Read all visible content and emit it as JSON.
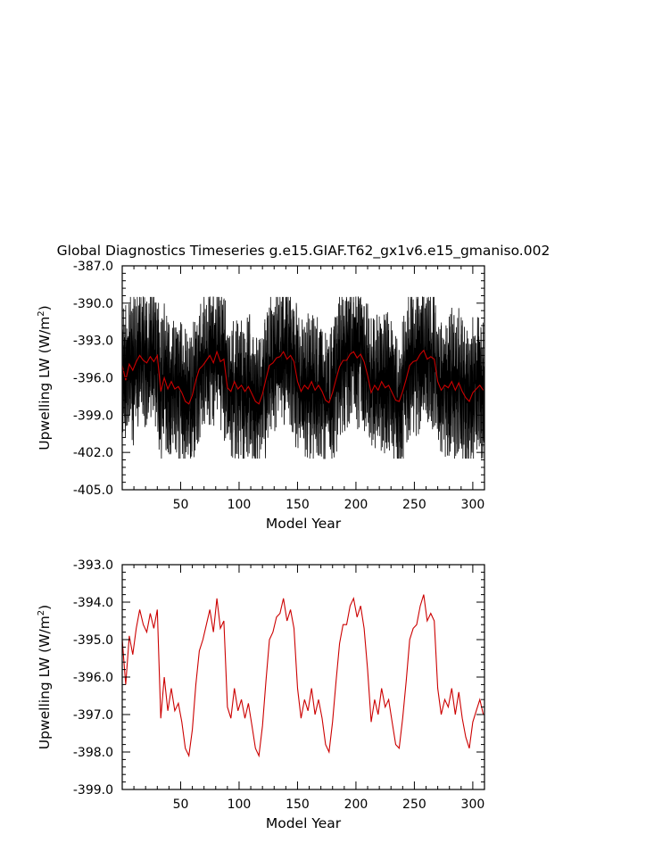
{
  "title": "Global Diagnostics Timeseries g.e15.GIAF.T62_gx1v6.e15_gmaniso.002",
  "chart_data": [
    {
      "type": "line",
      "xlabel": "Model Year",
      "ylabel": "Upwelling LW (W/m2)",
      "ylabel_main": "Upwelling LW (W/m",
      "ylabel_sup": "2",
      "ylabel_close": ")",
      "xlim": [
        0,
        310
      ],
      "ylim": [
        -405.0,
        -387.0
      ],
      "xticks": [
        "50",
        "100",
        "150",
        "200",
        "250",
        "300"
      ],
      "xtick_values": [
        50,
        100,
        150,
        200,
        250,
        300
      ],
      "yticks": [
        "-405.0",
        "-402.0",
        "-399.0",
        "-396.0",
        "-393.0",
        "-390.0",
        "-387.0"
      ],
      "ytick_values": [
        -405,
        -402,
        -399,
        -396,
        -393,
        -390,
        -387
      ],
      "series": [
        {
          "color": "#000000",
          "style": "dense monthly series",
          "envelope_low": -402.5,
          "envelope_high": -389.5,
          "typical_low": -401.5,
          "typical_high": -390.5
        },
        {
          "color": "#cc0000",
          "style": "annual mean, same as lower panel",
          "x": [
            0,
            3,
            6,
            9,
            12,
            15,
            18,
            21,
            24,
            27,
            30,
            33,
            36,
            39,
            42,
            45,
            48,
            51,
            54,
            57,
            60,
            63,
            66,
            69,
            72,
            75,
            78,
            81,
            84,
            87,
            90,
            93,
            96,
            99,
            102,
            105,
            108,
            111,
            114,
            117,
            120,
            123,
            126,
            129,
            132,
            135,
            138,
            141,
            144,
            147,
            150,
            153,
            156,
            159,
            162,
            165,
            168,
            171,
            174,
            177,
            180,
            183,
            186,
            189,
            192,
            195,
            198,
            201,
            204,
            207,
            210,
            213,
            216,
            219,
            222,
            225,
            228,
            231,
            234,
            237,
            240,
            243,
            246,
            249,
            252,
            255,
            258,
            261,
            264,
            267,
            270,
            273,
            276,
            279,
            282,
            285,
            288,
            291,
            294,
            297,
            300,
            303,
            306,
            309
          ],
          "y": [
            -395.0,
            -396.2,
            -394.9,
            -395.4,
            -394.7,
            -394.2,
            -394.6,
            -394.8,
            -394.3,
            -394.7,
            -394.2,
            -397.1,
            -396.0,
            -396.9,
            -396.3,
            -396.9,
            -396.7,
            -397.2,
            -397.9,
            -398.1,
            -397.4,
            -396.2,
            -395.3,
            -395.0,
            -394.6,
            -394.2,
            -394.8,
            -393.9,
            -394.7,
            -394.5,
            -396.8,
            -397.1,
            -396.3,
            -396.9,
            -396.6,
            -397.1,
            -396.7,
            -397.3,
            -397.9,
            -398.1,
            -397.3,
            -396.1,
            -395.0,
            -394.8,
            -394.4,
            -394.3,
            -393.9,
            -394.5,
            -394.2,
            -394.7,
            -396.3,
            -397.1,
            -396.6,
            -396.9,
            -396.3,
            -397.0,
            -396.6,
            -397.1,
            -397.8,
            -398.0,
            -397.2,
            -396.1,
            -395.1,
            -394.6,
            -394.6,
            -394.1,
            -393.9,
            -394.4,
            -394.1,
            -394.7,
            -395.8,
            -397.2,
            -396.6,
            -397.0,
            -396.3,
            -396.8,
            -396.6,
            -397.2,
            -397.8,
            -397.9,
            -397.1,
            -396.1,
            -395.0,
            -394.7,
            -394.6,
            -394.1,
            -393.8,
            -394.5,
            -394.3,
            -394.5,
            -396.3,
            -397.0,
            -396.6,
            -396.8,
            -396.3,
            -397.0,
            -396.4,
            -397.1,
            -397.6,
            -397.9,
            -397.2,
            -396.9,
            -396.6,
            -397.0
          ]
        }
      ]
    },
    {
      "type": "line",
      "xlabel": "Model Year",
      "ylabel": "Upwelling LW (W/m2)",
      "ylabel_main": "Upwelling LW (W/m",
      "ylabel_sup": "2",
      "ylabel_close": ")",
      "xlim": [
        0,
        310
      ],
      "ylim": [
        -399.0,
        -393.0
      ],
      "xticks": [
        "50",
        "100",
        "150",
        "200",
        "250",
        "300"
      ],
      "xtick_values": [
        50,
        100,
        150,
        200,
        250,
        300
      ],
      "yticks": [
        "-399.0",
        "-398.0",
        "-397.0",
        "-396.0",
        "-395.0",
        "-394.0",
        "-393.0"
      ],
      "ytick_values": [
        -399,
        -398,
        -397,
        -396,
        -395,
        -394,
        -393
      ],
      "series": [
        {
          "color": "#cc0000",
          "x": [
            0,
            3,
            6,
            9,
            12,
            15,
            18,
            21,
            24,
            27,
            30,
            33,
            36,
            39,
            42,
            45,
            48,
            51,
            54,
            57,
            60,
            63,
            66,
            69,
            72,
            75,
            78,
            81,
            84,
            87,
            90,
            93,
            96,
            99,
            102,
            105,
            108,
            111,
            114,
            117,
            120,
            123,
            126,
            129,
            132,
            135,
            138,
            141,
            144,
            147,
            150,
            153,
            156,
            159,
            162,
            165,
            168,
            171,
            174,
            177,
            180,
            183,
            186,
            189,
            192,
            195,
            198,
            201,
            204,
            207,
            210,
            213,
            216,
            219,
            222,
            225,
            228,
            231,
            234,
            237,
            240,
            243,
            246,
            249,
            252,
            255,
            258,
            261,
            264,
            267,
            270,
            273,
            276,
            279,
            282,
            285,
            288,
            291,
            294,
            297,
            300,
            303,
            306,
            309
          ],
          "y": [
            -395.0,
            -396.2,
            -394.9,
            -395.4,
            -394.7,
            -394.2,
            -394.6,
            -394.8,
            -394.3,
            -394.7,
            -394.2,
            -397.1,
            -396.0,
            -396.9,
            -396.3,
            -396.9,
            -396.7,
            -397.2,
            -397.9,
            -398.1,
            -397.4,
            -396.2,
            -395.3,
            -395.0,
            -394.6,
            -394.2,
            -394.8,
            -393.9,
            -394.7,
            -394.5,
            -396.8,
            -397.1,
            -396.3,
            -396.9,
            -396.6,
            -397.1,
            -396.7,
            -397.3,
            -397.9,
            -398.1,
            -397.3,
            -396.1,
            -395.0,
            -394.8,
            -394.4,
            -394.3,
            -393.9,
            -394.5,
            -394.2,
            -394.7,
            -396.3,
            -397.1,
            -396.6,
            -396.9,
            -396.3,
            -397.0,
            -396.6,
            -397.1,
            -397.8,
            -398.0,
            -397.2,
            -396.1,
            -395.1,
            -394.6,
            -394.6,
            -394.1,
            -393.9,
            -394.4,
            -394.1,
            -394.7,
            -395.8,
            -397.2,
            -396.6,
            -397.0,
            -396.3,
            -396.8,
            -396.6,
            -397.2,
            -397.8,
            -397.9,
            -397.1,
            -396.1,
            -395.0,
            -394.7,
            -394.6,
            -394.1,
            -393.8,
            -394.5,
            -394.3,
            -394.5,
            -396.3,
            -397.0,
            -396.6,
            -396.8,
            -396.3,
            -397.0,
            -396.4,
            -397.1,
            -397.6,
            -397.9,
            -397.2,
            -396.9,
            -396.6,
            -397.0
          ]
        }
      ]
    }
  ]
}
